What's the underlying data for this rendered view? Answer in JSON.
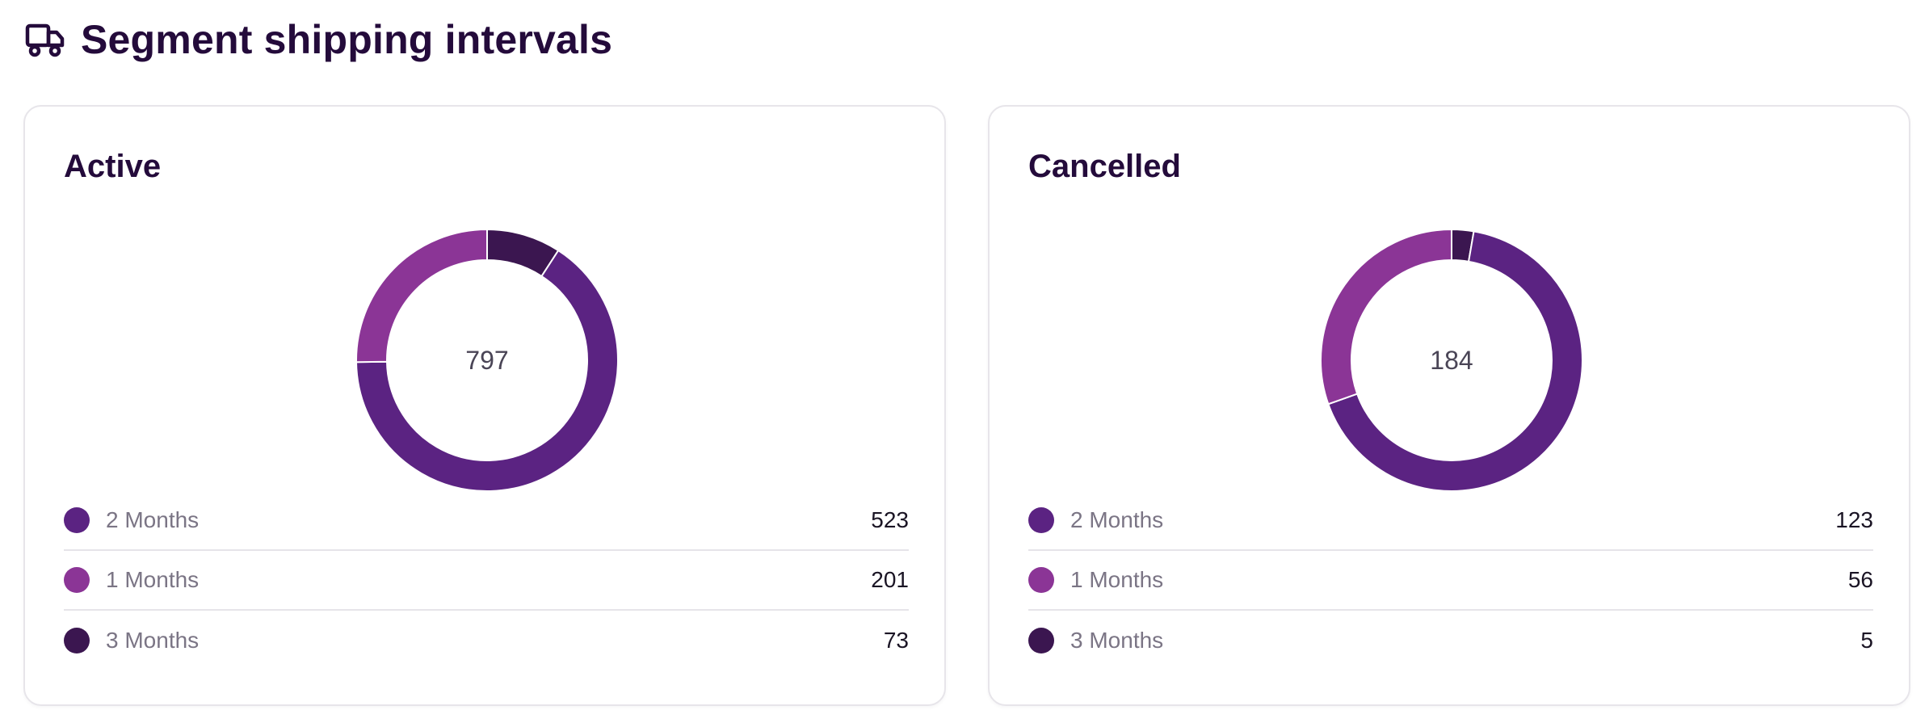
{
  "header": {
    "title": "Segment shipping intervals",
    "icon": "truck-icon"
  },
  "colors": {
    "two_months": "#5b2382",
    "one_months": "#8b3596",
    "three_months": "#3b1650",
    "text_dark": "#240b3b",
    "text_muted": "#7b7585"
  },
  "chart_data": [
    {
      "type": "pie",
      "title": "Active",
      "total": "797",
      "categories": [
        "2 Months",
        "1 Months",
        "3 Months"
      ],
      "values": [
        523,
        201,
        73
      ],
      "slice_colors": [
        "#5b2382",
        "#8b3596",
        "#3b1650"
      ],
      "legend": [
        {
          "label": "2 Months",
          "value": "523",
          "color": "#5b2382"
        },
        {
          "label": "1 Months",
          "value": "201",
          "color": "#8b3596"
        },
        {
          "label": "3 Months",
          "value": "73",
          "color": "#3b1650"
        }
      ]
    },
    {
      "type": "pie",
      "title": "Cancelled",
      "total": "184",
      "categories": [
        "2 Months",
        "1 Months",
        "3 Months"
      ],
      "values": [
        123,
        56,
        5
      ],
      "slice_colors": [
        "#5b2382",
        "#8b3596",
        "#3b1650"
      ],
      "legend": [
        {
          "label": "2 Months",
          "value": "123",
          "color": "#5b2382"
        },
        {
          "label": "1 Months",
          "value": "56",
          "color": "#8b3596"
        },
        {
          "label": "3 Months",
          "value": "5",
          "color": "#3b1650"
        }
      ]
    }
  ]
}
